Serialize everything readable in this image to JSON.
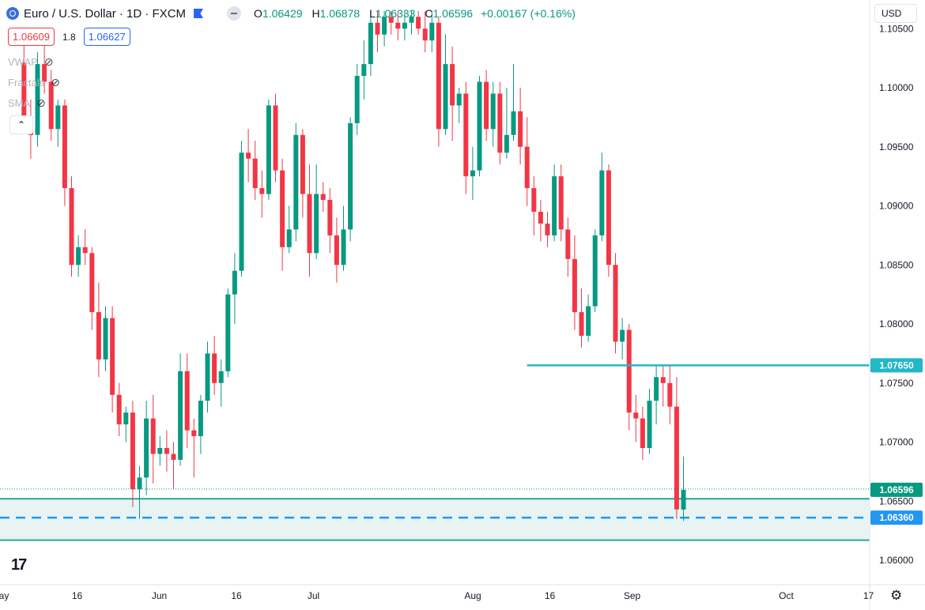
{
  "header": {
    "symbol_title": "Euro / U.S. Dollar · 1D · FXCM",
    "ohlc": {
      "o_label": "O",
      "o": "1.06429",
      "h_label": "H",
      "h": "1.06878",
      "l_label": "L",
      "l": "1.06333",
      "c_label": "C",
      "c": "1.06596",
      "change": "+0.00167 (+0.16%)"
    },
    "bid": "1.06609",
    "spread": "1.8",
    "ask": "1.06627",
    "indicators": [
      "VWAP",
      "Fractals",
      "SMA"
    ],
    "currency": "USD"
  },
  "colors": {
    "up": "#089981",
    "down": "#f23645",
    "resistance": "#22b7c9",
    "support": "#26a69a",
    "zone_fill": "#e7f4f3",
    "dashed": "#2196f3",
    "last_price": "#089981"
  },
  "chart_data": {
    "type": "candlestick",
    "y_range": [
      1.0585,
      1.1065
    ],
    "y_ticks": [
      "1.10500",
      "1.10000",
      "1.09500",
      "1.09000",
      "1.08500",
      "1.08000",
      "1.07500",
      "1.07000",
      "1.06500",
      "1.06000"
    ],
    "y_tick_values": [
      1.105,
      1.1,
      1.095,
      1.09,
      1.085,
      1.08,
      1.075,
      1.07,
      1.065,
      1.06
    ],
    "x_tick_labels": [
      "May",
      "16",
      "Jun",
      "16",
      "Jul",
      "Aug",
      "16",
      "Sep",
      "Oct",
      "17"
    ],
    "x_tick_dates": [
      "2023-05-01",
      "2023-05-16",
      "2023-06-01",
      "2023-06-16",
      "2023-07-01",
      "2023-08-01",
      "2023-08-16",
      "2023-09-01",
      "2023-10-01",
      "2023-10-17"
    ],
    "last_date": "2023-09-11",
    "candles": [
      [
        1.1021,
        1.105,
        1.0965,
        1.0975
      ],
      [
        1.0975,
        1.099,
        1.094,
        1.096
      ],
      [
        1.096,
        1.103,
        1.095,
        1.102
      ],
      [
        1.102,
        1.104,
        1.0995,
        1.1005
      ],
      [
        1.1005,
        1.1015,
        1.0955,
        1.0965
      ],
      [
        1.0965,
        1.099,
        1.095,
        1.0985
      ],
      [
        1.0985,
        1.099,
        1.09,
        1.0915
      ],
      [
        1.0915,
        1.0925,
        1.084,
        1.085
      ],
      [
        1.085,
        1.0875,
        1.084,
        1.0865
      ],
      [
        1.0865,
        1.088,
        1.085,
        1.086
      ],
      [
        1.086,
        1.0865,
        1.0795,
        1.081
      ],
      [
        1.081,
        1.0835,
        1.0755,
        1.077
      ],
      [
        1.077,
        1.0815,
        1.076,
        1.0805
      ],
      [
        1.0805,
        1.0815,
        1.0725,
        1.074
      ],
      [
        1.074,
        1.075,
        1.0705,
        1.0715
      ],
      [
        1.0715,
        1.073,
        1.07,
        1.0725
      ],
      [
        1.0725,
        1.0735,
        1.0645,
        1.066
      ],
      [
        1.066,
        1.068,
        1.0635,
        1.067
      ],
      [
        1.067,
        1.0735,
        1.0655,
        1.072
      ],
      [
        1.072,
        1.074,
        1.0665,
        1.069
      ],
      [
        1.069,
        1.0705,
        1.068,
        1.0695
      ],
      [
        1.0695,
        1.071,
        1.0675,
        1.069
      ],
      [
        1.069,
        1.07,
        1.066,
        1.0685
      ],
      [
        1.0685,
        1.0775,
        1.068,
        1.076
      ],
      [
        1.076,
        1.0775,
        1.0695,
        1.071
      ],
      [
        1.071,
        1.072,
        1.067,
        1.0705
      ],
      [
        1.0705,
        1.074,
        1.069,
        1.0735
      ],
      [
        1.0735,
        1.0785,
        1.0725,
        1.0775
      ],
      [
        1.0775,
        1.079,
        1.074,
        1.075
      ],
      [
        1.075,
        1.077,
        1.073,
        1.076
      ],
      [
        1.076,
        1.083,
        1.0755,
        1.0825
      ],
      [
        1.0825,
        1.086,
        1.08,
        1.0845
      ],
      [
        1.0845,
        1.0955,
        1.084,
        1.0945
      ],
      [
        1.0945,
        1.0965,
        1.092,
        1.094
      ],
      [
        1.094,
        1.0955,
        1.0905,
        1.0915
      ],
      [
        1.0915,
        1.093,
        1.089,
        1.091
      ],
      [
        1.091,
        1.099,
        1.0905,
        1.0985
      ],
      [
        1.0985,
        1.0995,
        1.092,
        1.093
      ],
      [
        1.093,
        1.094,
        1.0845,
        1.0865
      ],
      [
        1.0865,
        1.09,
        1.086,
        1.088
      ],
      [
        1.088,
        1.097,
        1.087,
        1.096
      ],
      [
        1.096,
        1.0965,
        1.089,
        1.091
      ],
      [
        1.091,
        1.0935,
        1.084,
        1.086
      ],
      [
        1.086,
        1.0935,
        1.0855,
        1.091
      ],
      [
        1.091,
        1.092,
        1.0895,
        1.0905
      ],
      [
        1.0905,
        1.0915,
        1.086,
        1.0875
      ],
      [
        1.0875,
        1.089,
        1.0835,
        1.085
      ],
      [
        1.085,
        1.09,
        1.0845,
        1.088
      ],
      [
        1.088,
        1.0975,
        1.087,
        1.097
      ],
      [
        1.097,
        1.102,
        1.096,
        1.101
      ],
      [
        1.101,
        1.104,
        1.099,
        1.102
      ],
      [
        1.102,
        1.1065,
        1.101,
        1.1055
      ],
      [
        1.1055,
        1.1065,
        1.103,
        1.1045
      ],
      [
        1.1045,
        1.1065,
        1.1035,
        1.106
      ],
      [
        1.106,
        1.1065,
        1.1045,
        1.1055
      ],
      [
        1.1055,
        1.1065,
        1.104,
        1.105
      ],
      [
        1.105,
        1.1065,
        1.104,
        1.1055
      ],
      [
        1.1055,
        1.1065,
        1.1045,
        1.106
      ],
      [
        1.106,
        1.1065,
        1.1045,
        1.105
      ],
      [
        1.105,
        1.1065,
        1.103,
        1.104
      ],
      [
        1.104,
        1.1065,
        1.103,
        1.1055
      ],
      [
        1.1055,
        1.106,
        1.095,
        1.0965
      ],
      [
        1.0965,
        1.1045,
        1.096,
        1.102
      ],
      [
        1.102,
        1.1035,
        1.0955,
        1.0985
      ],
      [
        1.0985,
        1.1,
        1.097,
        1.0995
      ],
      [
        1.0995,
        1.1005,
        1.091,
        1.0925
      ],
      [
        1.0925,
        1.095,
        1.0905,
        1.093
      ],
      [
        1.093,
        1.101,
        1.0925,
        1.1005
      ],
      [
        1.1005,
        1.1015,
        1.0955,
        1.0965
      ],
      [
        1.0965,
        1.1005,
        1.095,
        1.0995
      ],
      [
        1.0995,
        1.1005,
        1.0935,
        1.0945
      ],
      [
        1.0945,
        1.1,
        1.094,
        1.096
      ],
      [
        1.096,
        1.102,
        1.0955,
        1.098
      ],
      [
        1.098,
        1.1,
        1.0935,
        1.095
      ],
      [
        1.095,
        1.0975,
        1.09,
        1.0915
      ],
      [
        1.0915,
        1.0925,
        1.0875,
        1.0895
      ],
      [
        1.0895,
        1.0905,
        1.087,
        1.0885
      ],
      [
        1.0885,
        1.0895,
        1.0865,
        1.0875
      ],
      [
        1.0875,
        1.0935,
        1.087,
        1.0925
      ],
      [
        1.0925,
        1.0935,
        1.087,
        1.088
      ],
      [
        1.088,
        1.089,
        1.084,
        1.0855
      ],
      [
        1.0855,
        1.0875,
        1.0795,
        1.081
      ],
      [
        1.081,
        1.083,
        1.078,
        1.079
      ],
      [
        1.079,
        1.0825,
        1.0785,
        1.0815
      ],
      [
        1.0815,
        1.088,
        1.081,
        1.0875
      ],
      [
        1.0875,
        1.0945,
        1.087,
        1.093
      ],
      [
        1.093,
        1.0935,
        1.084,
        1.085
      ],
      [
        1.085,
        1.086,
        1.0775,
        1.0785
      ],
      [
        1.0785,
        1.0805,
        1.077,
        1.0795
      ],
      [
        1.0795,
        1.08,
        1.071,
        1.0725
      ],
      [
        1.0725,
        1.074,
        1.07,
        1.072
      ],
      [
        1.072,
        1.073,
        1.0685,
        1.0695
      ],
      [
        1.0695,
        1.0745,
        1.069,
        1.0735
      ],
      [
        1.0735,
        1.0765,
        1.0715,
        1.0755
      ],
      [
        1.0755,
        1.0765,
        1.073,
        1.075
      ],
      [
        1.075,
        1.0765,
        1.0715,
        1.073
      ],
      [
        1.073,
        1.0755,
        1.0635,
        1.0643
      ],
      [
        1.06429,
        1.06878,
        1.06333,
        1.06596
      ]
    ],
    "lines": {
      "resistance": {
        "value": 1.0765,
        "label": "1.07650",
        "start_index": 74
      },
      "zone_top": 1.0652,
      "zone_bottom": 1.0617,
      "support_dashed": {
        "value": 1.0636,
        "label": "1.06360"
      },
      "last_price": {
        "value": 1.06596,
        "label": "1.06596"
      }
    }
  }
}
